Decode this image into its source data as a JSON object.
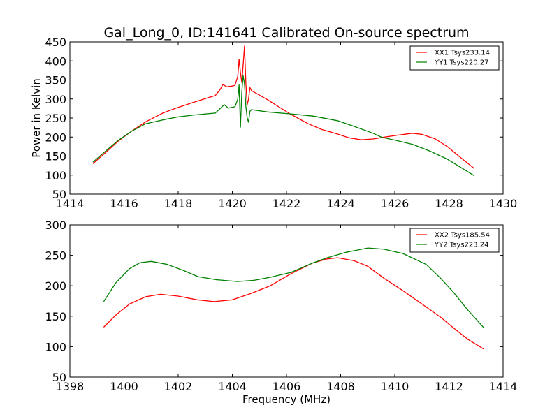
{
  "chart_data": [
    {
      "type": "line",
      "title": "Gal_Long_0, ID:141641 Calibrated On-source spectrum",
      "xlabel": "",
      "ylabel": "Power in Kelvin",
      "xlim": [
        1414,
        1430
      ],
      "ylim": [
        50,
        450
      ],
      "xticks": [
        1414,
        1416,
        1418,
        1420,
        1422,
        1424,
        1426,
        1428,
        1430
      ],
      "yticks": [
        50,
        100,
        150,
        200,
        250,
        300,
        350,
        400,
        450
      ],
      "xtick_labels": [
        "1414",
        "1416",
        "1418",
        "1420",
        "1422",
        "1424",
        "1426",
        "1428",
        "1430"
      ],
      "ytick_labels": [
        "50",
        "100",
        "150",
        "200",
        "250",
        "300",
        "350",
        "400",
        "450"
      ],
      "grid": false,
      "legend_position": "top-right",
      "series": [
        {
          "name": "XX1 Tsys233.14",
          "color": "#ff0000",
          "x": [
            1414.85,
            1415.3,
            1415.8,
            1416.27,
            1416.8,
            1417.43,
            1418.0,
            1418.6,
            1419.37,
            1419.55,
            1419.65,
            1419.8,
            1420.0,
            1420.1,
            1420.2,
            1420.25,
            1420.3,
            1420.35,
            1420.4,
            1420.45,
            1420.5,
            1420.55,
            1420.6,
            1420.65,
            1420.71,
            1421.3,
            1422.13,
            1422.8,
            1423.3,
            1423.88,
            1424.3,
            1424.76,
            1425.2,
            1425.53,
            1426.0,
            1426.65,
            1427.0,
            1427.5,
            1427.94,
            1428.4,
            1428.92
          ],
          "y": [
            130,
            158,
            190,
            215,
            240,
            263,
            278,
            292,
            309,
            325,
            338,
            332,
            334,
            336,
            360,
            404,
            370,
            343,
            390,
            439,
            340,
            285,
            300,
            330,
            322,
            298,
            261,
            235,
            220,
            208,
            198,
            193,
            195,
            199,
            204,
            210,
            207,
            195,
            175,
            148,
            118
          ]
        },
        {
          "name": "YY1 Tsys220.27",
          "color": "#008000",
          "x": [
            1414.85,
            1415.3,
            1415.8,
            1416.27,
            1416.8,
            1417.43,
            1418.0,
            1418.6,
            1419.37,
            1419.55,
            1419.7,
            1419.85,
            1420.0,
            1420.1,
            1420.2,
            1420.25,
            1420.3,
            1420.35,
            1420.4,
            1420.45,
            1420.5,
            1420.55,
            1420.6,
            1420.65,
            1420.71,
            1421.3,
            1422.13,
            1423.0,
            1423.88,
            1424.5,
            1425.2,
            1425.53,
            1426.0,
            1426.65,
            1427.3,
            1427.94,
            1428.4,
            1428.92
          ],
          "y": [
            134,
            162,
            192,
            215,
            235,
            245,
            253,
            258,
            263,
            275,
            285,
            276,
            278,
            280,
            300,
            337,
            226,
            320,
            361,
            340,
            280,
            250,
            239,
            268,
            272,
            266,
            261,
            255,
            243,
            228,
            210,
            199,
            192,
            181,
            163,
            142,
            122,
            99
          ]
        }
      ]
    },
    {
      "type": "line",
      "title": "",
      "xlabel": "Frequency (MHz)",
      "ylabel": "",
      "xlim": [
        1398,
        1414
      ],
      "ylim": [
        50,
        300
      ],
      "xticks": [
        1398,
        1400,
        1402,
        1404,
        1406,
        1408,
        1410,
        1412,
        1414
      ],
      "yticks": [
        50,
        100,
        150,
        200,
        250,
        300
      ],
      "xtick_labels": [
        "1398",
        "1400",
        "1402",
        "1404",
        "1406",
        "1408",
        "1410",
        "1412",
        "1414"
      ],
      "ytick_labels": [
        "50",
        "100",
        "150",
        "200",
        "250",
        "300"
      ],
      "grid": false,
      "legend_position": "top-right",
      "series": [
        {
          "name": "XX2 Tsys185.54",
          "color": "#ff0000",
          "x": [
            1399.25,
            1399.7,
            1400.2,
            1400.8,
            1401.35,
            1402.0,
            1402.7,
            1403.33,
            1404.0,
            1404.67,
            1405.4,
            1406.17,
            1406.95,
            1407.5,
            1407.89,
            1408.5,
            1409.0,
            1409.61,
            1410.3,
            1411.07,
            1411.7,
            1412.19,
            1412.7,
            1413.29
          ],
          "y": [
            132,
            152,
            170,
            182,
            186,
            183,
            177,
            174,
            177,
            187,
            200,
            220,
            237,
            244,
            246,
            241,
            232,
            212,
            192,
            168,
            148,
            130,
            112,
            96
          ]
        },
        {
          "name": "YY2 Tsys223.24",
          "color": "#008000",
          "x": [
            1399.25,
            1399.7,
            1400.2,
            1400.6,
            1401.01,
            1401.6,
            1402.2,
            1402.73,
            1403.4,
            1404.19,
            1404.8,
            1405.4,
            1406.17,
            1406.95,
            1407.5,
            1408.2,
            1409.01,
            1409.6,
            1410.3,
            1411.16,
            1411.7,
            1412.19,
            1412.7,
            1413.29
          ],
          "y": [
            174,
            205,
            228,
            238,
            240,
            235,
            225,
            215,
            210,
            207,
            209,
            214,
            222,
            237,
            246,
            255,
            262,
            260,
            253,
            235,
            212,
            188,
            160,
            131
          ]
        }
      ]
    }
  ]
}
